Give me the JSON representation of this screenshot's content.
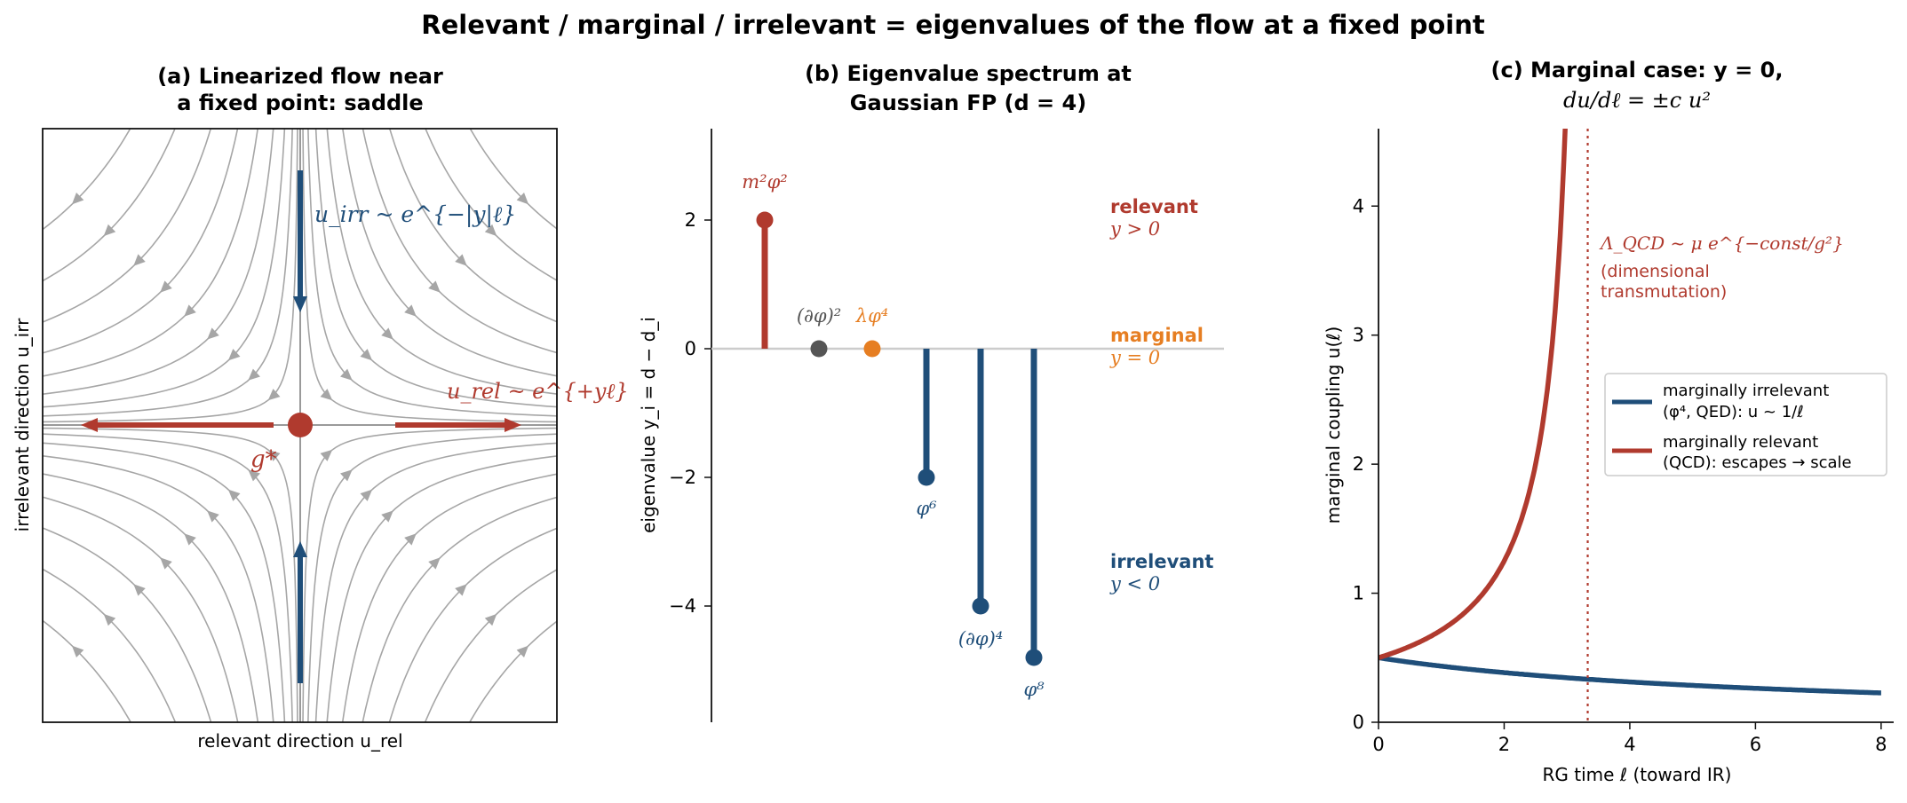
{
  "suptitle": "Relevant / marginal / irrelevant  =  eigenvalues of the flow at a fixed point",
  "colors": {
    "relevant": "#b03a2e",
    "marginal": "#e67e22",
    "irrelevant": "#1f4e79",
    "neutral": "#555555",
    "stream": "#a6a6a6",
    "zero_line": "#cccccc"
  },
  "panel_a": {
    "title_line1": "(a)  Linearized flow near",
    "title_line2": "a fixed point: saddle",
    "xlabel": "relevant direction u_rel",
    "ylabel": "irrelevant direction u_irr",
    "irr_label": "u_irr ~ e^{−|y|ℓ}",
    "rel_label": "u_rel ~ e^{+yℓ}",
    "fp_label": "g*"
  },
  "panel_b": {
    "title_line1": "(b)  Eigenvalue spectrum at",
    "title_line2": "Gaussian FP (d = 4)",
    "ylabel": "eigenvalue  y_i = d − d_i",
    "legend": {
      "relevant": {
        "name": "relevant",
        "cond": "y > 0"
      },
      "marginal": {
        "name": "marginal",
        "cond": "y = 0"
      },
      "irrelevant": {
        "name": "irrelevant",
        "cond": "y < 0"
      }
    }
  },
  "panel_c": {
    "title_line1": "(c)  Marginal case: y = 0,",
    "title_line2": "du/dℓ = ±c u²",
    "xlabel": "RG time ℓ  (toward IR)",
    "ylabel": "marginal coupling  u(ℓ)",
    "annotation_line1": "Λ_QCD ~ μ e^{−const/g²}",
    "annotation_line2": "(dimensional",
    "annotation_line3": "transmutation)",
    "legend_irr_line1": "marginally irrelevant",
    "legend_irr_line2": "(φ⁴, QED):  u ~ 1/ℓ",
    "legend_rel_line1": "marginally relevant",
    "legend_rel_line2": "(QCD):  escapes → scale"
  },
  "chart_data": [
    {
      "type": "streamplot",
      "title": "(a)  Linearized flow near a fixed point: saddle",
      "xlabel": "relevant direction u_rel",
      "ylabel": "irrelevant direction u_irr",
      "fixed_point": [
        0,
        0
      ],
      "eigen_directions": [
        {
          "direction": "relevant",
          "flow": "outward along u_rel",
          "growth": "e^{+yℓ}"
        },
        {
          "direction": "irrelevant",
          "flow": "inward along u_irr",
          "growth": "e^{−|y|ℓ}"
        }
      ]
    },
    {
      "type": "stem",
      "title": "(b)  Eigenvalue spectrum at Gaussian FP (d = 4)",
      "ylabel": "eigenvalue  y_i = d − d_i",
      "ylim": [
        -5.8,
        3.4
      ],
      "yticks": [
        -4,
        -2,
        0,
        2
      ],
      "points": [
        {
          "operator": "m²φ²",
          "y": 2,
          "class": "relevant"
        },
        {
          "operator": "(∂φ)²",
          "y": 0,
          "class": "neutral"
        },
        {
          "operator": "λφ⁴",
          "y": 0,
          "class": "marginal"
        },
        {
          "operator": "φ⁶",
          "y": -2,
          "class": "irrelevant"
        },
        {
          "operator": "(∂φ)⁴",
          "y": -4,
          "class": "irrelevant"
        },
        {
          "operator": "φ⁸",
          "y": -4.8,
          "class": "irrelevant"
        }
      ]
    },
    {
      "type": "line",
      "title": "(c)  Marginal case: y = 0, du/dℓ = ±c u²",
      "xlabel": "RG time ℓ  (toward IR)",
      "ylabel": "marginal coupling  u(ℓ)",
      "xlim": [
        0,
        8.2
      ],
      "ylim": [
        0,
        4.6
      ],
      "xticks": [
        0,
        2,
        4,
        6,
        8
      ],
      "yticks": [
        0,
        1,
        2,
        3,
        4
      ],
      "vline_x": 3.33,
      "series": [
        {
          "name": "marginally irrelevant (φ⁴, QED):  u ~ 1/ℓ",
          "u0": 0.5,
          "c": 0.3,
          "sign": -1,
          "formula": "u = u0/(1 + c·u0·ℓ)"
        },
        {
          "name": "marginally relevant (QCD):  escapes → scale",
          "u0": 0.5,
          "c": 0.6,
          "sign": 1,
          "formula": "u = u0/(1 − c·u0·ℓ)"
        }
      ]
    }
  ]
}
